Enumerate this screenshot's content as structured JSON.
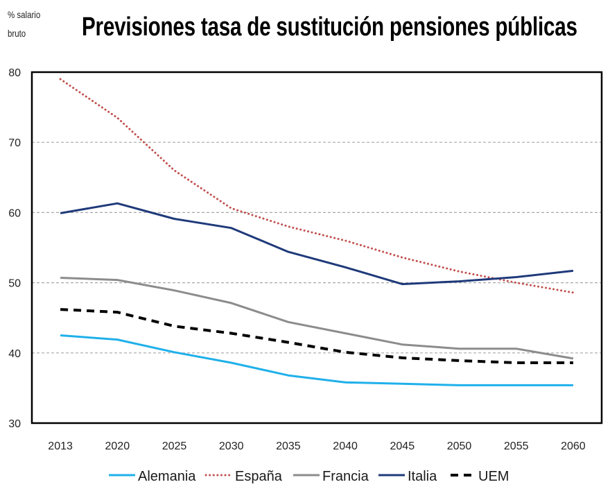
{
  "chart_data": {
    "type": "line",
    "title": "Previsiones tasa de sustitución pensiones públicas",
    "ylabel": "% salario bruto",
    "ylabel_lines": [
      "% salario",
      "bruto"
    ],
    "xlabel": "",
    "categories": [
      "2013",
      "2020",
      "2025",
      "2030",
      "2035",
      "2040",
      "2045",
      "2050",
      "2055",
      "2060"
    ],
    "ylim": [
      30,
      80
    ],
    "yticks": [
      30,
      40,
      50,
      60,
      70,
      80
    ],
    "grid": "horizontal dashed",
    "legend_position": "bottom",
    "series": [
      {
        "name": "Alemania",
        "color": "#1fb0ea",
        "style": "solid",
        "values": [
          42.5,
          41.9,
          40.1,
          38.6,
          36.8,
          35.8,
          35.6,
          35.4,
          35.4,
          35.4
        ]
      },
      {
        "name": "España",
        "color": "#c0504d",
        "style": "dotted",
        "values": [
          79.0,
          73.5,
          66.0,
          60.6,
          58.0,
          56.0,
          53.6,
          51.6,
          50.0,
          48.6
        ]
      },
      {
        "name": "Francia",
        "color": "#8c8c8c",
        "style": "solid",
        "values": [
          50.7,
          50.4,
          48.9,
          47.1,
          44.4,
          42.8,
          41.2,
          40.6,
          40.6,
          39.2
        ]
      },
      {
        "name": "Italia",
        "color": "#1f3a7a",
        "style": "solid",
        "values": [
          59.9,
          61.3,
          59.1,
          57.8,
          54.4,
          52.2,
          49.8,
          50.2,
          50.8,
          51.7
        ]
      },
      {
        "name": "UEM",
        "color": "#000000",
        "style": "dashed",
        "values": [
          46.2,
          45.8,
          43.8,
          42.8,
          41.5,
          40.1,
          39.3,
          38.9,
          38.6,
          38.6
        ]
      }
    ]
  }
}
